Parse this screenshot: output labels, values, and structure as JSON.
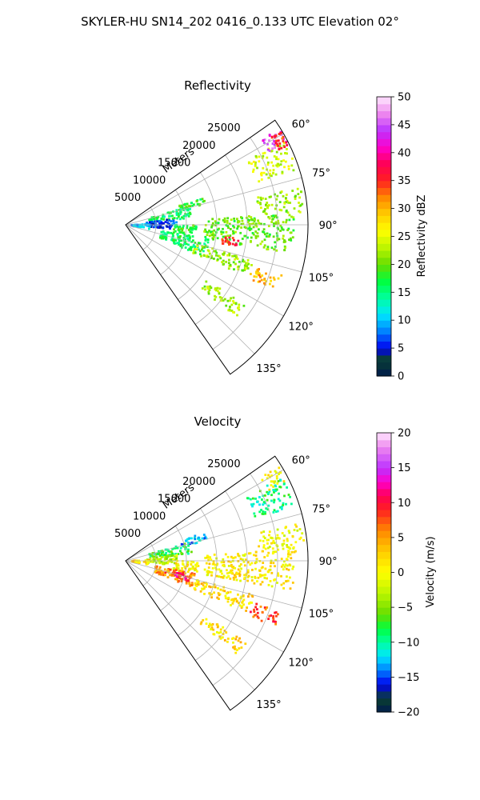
{
  "figure": {
    "suptitle": "SKYLER-HU  SN14_202  0416_0.133 UTC Elevation 02°"
  },
  "chart_data": [
    {
      "type": "heatmap",
      "title": "Reflectivity",
      "projection": "polar-sector",
      "range_label": "Meters",
      "range_ticks": [
        "5000",
        "10000",
        "15000",
        "20000",
        "25000"
      ],
      "range_tick_values": [
        5000,
        10000,
        15000,
        20000,
        25000
      ],
      "max_range": 30000,
      "azimuth_ticks": [
        "60°",
        "75°",
        "90°",
        "105°",
        "120°",
        "135°"
      ],
      "azimuth_tick_values": [
        60,
        75,
        90,
        105,
        120,
        135
      ],
      "azimuth_range": [
        55,
        145
      ],
      "grid": true,
      "colorbar": {
        "label": "Reflectivity dBZ",
        "min": 0,
        "max": 50,
        "ticks": [
          0,
          5,
          10,
          15,
          20,
          25,
          30,
          35,
          40,
          45,
          50
        ],
        "tick_labels": [
          "0",
          "5",
          "10",
          "15",
          "20",
          "25",
          "30",
          "35",
          "40",
          "45",
          "50"
        ],
        "colormap": [
          {
            "v": 0,
            "c": "#001a4d"
          },
          {
            "v": 3,
            "c": "#0a4030"
          },
          {
            "v": 5,
            "c": "#0000ee"
          },
          {
            "v": 8,
            "c": "#0080ff"
          },
          {
            "v": 11,
            "c": "#00e5ff"
          },
          {
            "v": 14,
            "c": "#00ffa0"
          },
          {
            "v": 17,
            "c": "#00ff40"
          },
          {
            "v": 20,
            "c": "#66dd00"
          },
          {
            "v": 23,
            "c": "#bbf500"
          },
          {
            "v": 26,
            "c": "#ffff00"
          },
          {
            "v": 29,
            "c": "#ffcc00"
          },
          {
            "v": 32,
            "c": "#ff8800"
          },
          {
            "v": 35,
            "c": "#ff2020"
          },
          {
            "v": 38,
            "c": "#ff0055"
          },
          {
            "v": 41,
            "c": "#ff00cc"
          },
          {
            "v": 44,
            "c": "#bb33ff"
          },
          {
            "v": 47,
            "c": "#ee88ee"
          },
          {
            "v": 50,
            "c": "#ffe8ff"
          }
        ]
      },
      "cells": [
        {
          "az": [
            62,
            72
          ],
          "r": [
            22500,
            29500
          ],
          "v": 24
        },
        {
          "az": [
            58,
            63
          ],
          "r": [
            26500,
            29800
          ],
          "v": 44
        },
        {
          "az": [
            59,
            64
          ],
          "r": [
            28000,
            29800
          ],
          "v": 35
        },
        {
          "az": [
            70,
            76
          ],
          "r": [
            9000,
            14000
          ],
          "v": 18
        },
        {
          "az": [
            74,
            84
          ],
          "r": [
            4000,
            11000
          ],
          "v": 16
        },
        {
          "az": [
            83,
            95
          ],
          "r": [
            3500,
            8500
          ],
          "v": 6
        },
        {
          "az": [
            88,
            100
          ],
          "r": [
            1000,
            4000
          ],
          "v": 10
        },
        {
          "az": [
            90,
            100
          ],
          "r": [
            8000,
            12000
          ],
          "v": 18
        },
        {
          "az": [
            100,
            112
          ],
          "r": [
            6000,
            14000
          ],
          "v": 16
        },
        {
          "az": [
            105,
            113
          ],
          "r": [
            12000,
            22000
          ],
          "v": 22
        },
        {
          "az": [
            86,
            100
          ],
          "r": [
            13000,
            28000
          ],
          "v": 20
        },
        {
          "az": [
            97,
            101
          ],
          "r": [
            16000,
            19000
          ],
          "v": 36
        },
        {
          "az": [
            108,
            114
          ],
          "r": [
            22000,
            27000
          ],
          "v": 30
        },
        {
          "az": [
            124,
            130
          ],
          "r": [
            16000,
            24000
          ],
          "v": 22
        },
        {
          "az": [
            78,
            86
          ],
          "r": [
            22000,
            29500
          ],
          "v": 22
        }
      ]
    },
    {
      "type": "heatmap",
      "title": "Velocity",
      "projection": "polar-sector",
      "range_label": "Meters",
      "range_ticks": [
        "5000",
        "10000",
        "15000",
        "20000",
        "25000"
      ],
      "range_tick_values": [
        5000,
        10000,
        15000,
        20000,
        25000
      ],
      "max_range": 30000,
      "azimuth_ticks": [
        "60°",
        "75°",
        "90°",
        "105°",
        "120°",
        "135°"
      ],
      "azimuth_tick_values": [
        60,
        75,
        90,
        105,
        120,
        135
      ],
      "azimuth_range": [
        55,
        145
      ],
      "grid": true,
      "colorbar": {
        "label": "Velocity (m/s)",
        "min": -20,
        "max": 20,
        "ticks": [
          -20,
          -15,
          -10,
          -5,
          0,
          5,
          10,
          15,
          20
        ],
        "tick_labels": [
          "−20",
          "−15",
          "−10",
          "−5",
          "0",
          "5",
          "10",
          "15",
          "20"
        ],
        "colormap": [
          {
            "v": -20,
            "c": "#001a4d"
          },
          {
            "v": -18,
            "c": "#0a4030"
          },
          {
            "v": -16,
            "c": "#0000ee"
          },
          {
            "v": -14,
            "c": "#0080ff"
          },
          {
            "v": -12,
            "c": "#00e5ff"
          },
          {
            "v": -10,
            "c": "#00ffa0"
          },
          {
            "v": -8,
            "c": "#00ff40"
          },
          {
            "v": -6,
            "c": "#66dd00"
          },
          {
            "v": -3,
            "c": "#bbf500"
          },
          {
            "v": 0,
            "c": "#ffff00"
          },
          {
            "v": 3,
            "c": "#ffcc00"
          },
          {
            "v": 6,
            "c": "#ff8800"
          },
          {
            "v": 9,
            "c": "#ff2020"
          },
          {
            "v": 11,
            "c": "#ff0055"
          },
          {
            "v": 13,
            "c": "#ff00cc"
          },
          {
            "v": 15,
            "c": "#bb33ff"
          },
          {
            "v": 18,
            "c": "#ee88ee"
          },
          {
            "v": 20,
            "c": "#ffe8ff"
          }
        ]
      },
      "cells": [
        {
          "az": [
            62,
            72
          ],
          "r": [
            22500,
            29500
          ],
          "v": -9
        },
        {
          "az": [
            58,
            64
          ],
          "r": [
            26000,
            29800
          ],
          "v": 0
        },
        {
          "az": [
            70,
            76
          ],
          "r": [
            9000,
            14000
          ],
          "v": -13
        },
        {
          "az": [
            74,
            84
          ],
          "r": [
            4000,
            11000
          ],
          "v": -8
        },
        {
          "az": [
            83,
            95
          ],
          "r": [
            3500,
            8500
          ],
          "v": -3
        },
        {
          "az": [
            88,
            100
          ],
          "r": [
            1000,
            4000
          ],
          "v": 2
        },
        {
          "az": [
            90,
            100
          ],
          "r": [
            8000,
            12000
          ],
          "v": 1
        },
        {
          "az": [
            100,
            112
          ],
          "r": [
            5000,
            12000
          ],
          "v": 6
        },
        {
          "az": [
            103,
            108
          ],
          "r": [
            8000,
            11000
          ],
          "v": 10
        },
        {
          "az": [
            105,
            113
          ],
          "r": [
            12000,
            22000
          ],
          "v": 2
        },
        {
          "az": [
            86,
            100
          ],
          "r": [
            13000,
            28000
          ],
          "v": 1
        },
        {
          "az": [
            108,
            114
          ],
          "r": [
            22000,
            27000
          ],
          "v": 8
        },
        {
          "az": [
            124,
            130
          ],
          "r": [
            16000,
            24000
          ],
          "v": 2
        },
        {
          "az": [
            78,
            86
          ],
          "r": [
            22000,
            29500
          ],
          "v": 0
        }
      ]
    }
  ]
}
